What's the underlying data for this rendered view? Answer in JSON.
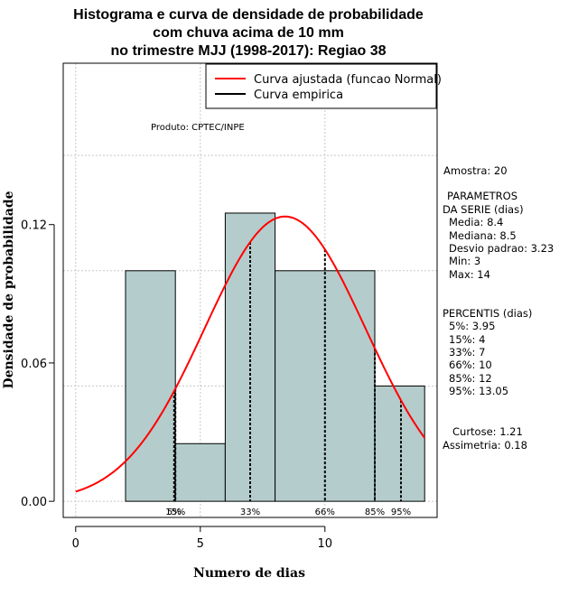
{
  "chart_data": {
    "type": "bar",
    "title_lines": [
      "Histograma e curva de densidade de probabilidade",
      "com chuva acima de 10 mm",
      "no trimestre MJJ (1998-2017): Regiao 38"
    ],
    "xlabel": "Numero de dias",
    "ylabel": "Densidade de probabilidade",
    "xlim": [
      -0.5,
      14.5
    ],
    "ylim": [
      -0.007,
      0.19
    ],
    "x_ticks": [
      0,
      5,
      10
    ],
    "y_ticks": [
      0.0,
      0.06,
      0.12
    ],
    "y_tick_labels": [
      "0.00",
      "0.06",
      "0.12"
    ],
    "grid": true,
    "grid_x": [
      0,
      5,
      10
    ],
    "grid_y": [
      0.0,
      0.05,
      0.1,
      0.15
    ],
    "bar_color": "#b5cccc",
    "curve_color": "#ff0000",
    "bins": [
      {
        "x0": 2,
        "x1": 4,
        "density": 0.1
      },
      {
        "x0": 4,
        "x1": 6,
        "density": 0.025
      },
      {
        "x0": 6,
        "x1": 8,
        "density": 0.125
      },
      {
        "x0": 8,
        "x1": 12,
        "density": 0.1
      },
      {
        "x0": 12,
        "x1": 14,
        "density": 0.05
      }
    ],
    "normal_fit": {
      "mean": 8.4,
      "sd": 3.23,
      "x_from": 0,
      "x_to": 14
    },
    "percentile_lines": [
      {
        "label": "5%",
        "x": 3.95
      },
      {
        "label": "15%",
        "x": 4
      },
      {
        "label": "33%",
        "x": 7
      },
      {
        "label": "66%",
        "x": 10
      },
      {
        "label": "85%",
        "x": 12
      },
      {
        "label": "95%",
        "x": 13.05
      }
    ],
    "legend": {
      "position": "top-right",
      "items": [
        {
          "label": "Curva ajustada (funcao Normal)",
          "color": "#ff0000"
        },
        {
          "label": "Curva empirica",
          "color": "#000000"
        }
      ]
    },
    "source_note": "Produto: CPTEC/INPE"
  },
  "stats_panel": {
    "amostra": "Amostra: 20",
    "parametros_title_1": "PARAMETROS",
    "parametros_title_2": "DA SERIE (dias)",
    "media": "Media: 8.4",
    "mediana": "Mediana: 8.5",
    "desvio": "Desvio padrao: 3.23",
    "min": "Min: 3",
    "max": "Max: 14",
    "percentis_title": "PERCENTIS (dias)",
    "p5": "5%: 3.95",
    "p15": "15%: 4",
    "p33": "33%: 7",
    "p66": "66%: 10",
    "p85": "85%: 12",
    "p95": "95%: 13.05",
    "curtose": "Curtose: 1.21",
    "assimetria": "Assimetria: 0.18"
  }
}
